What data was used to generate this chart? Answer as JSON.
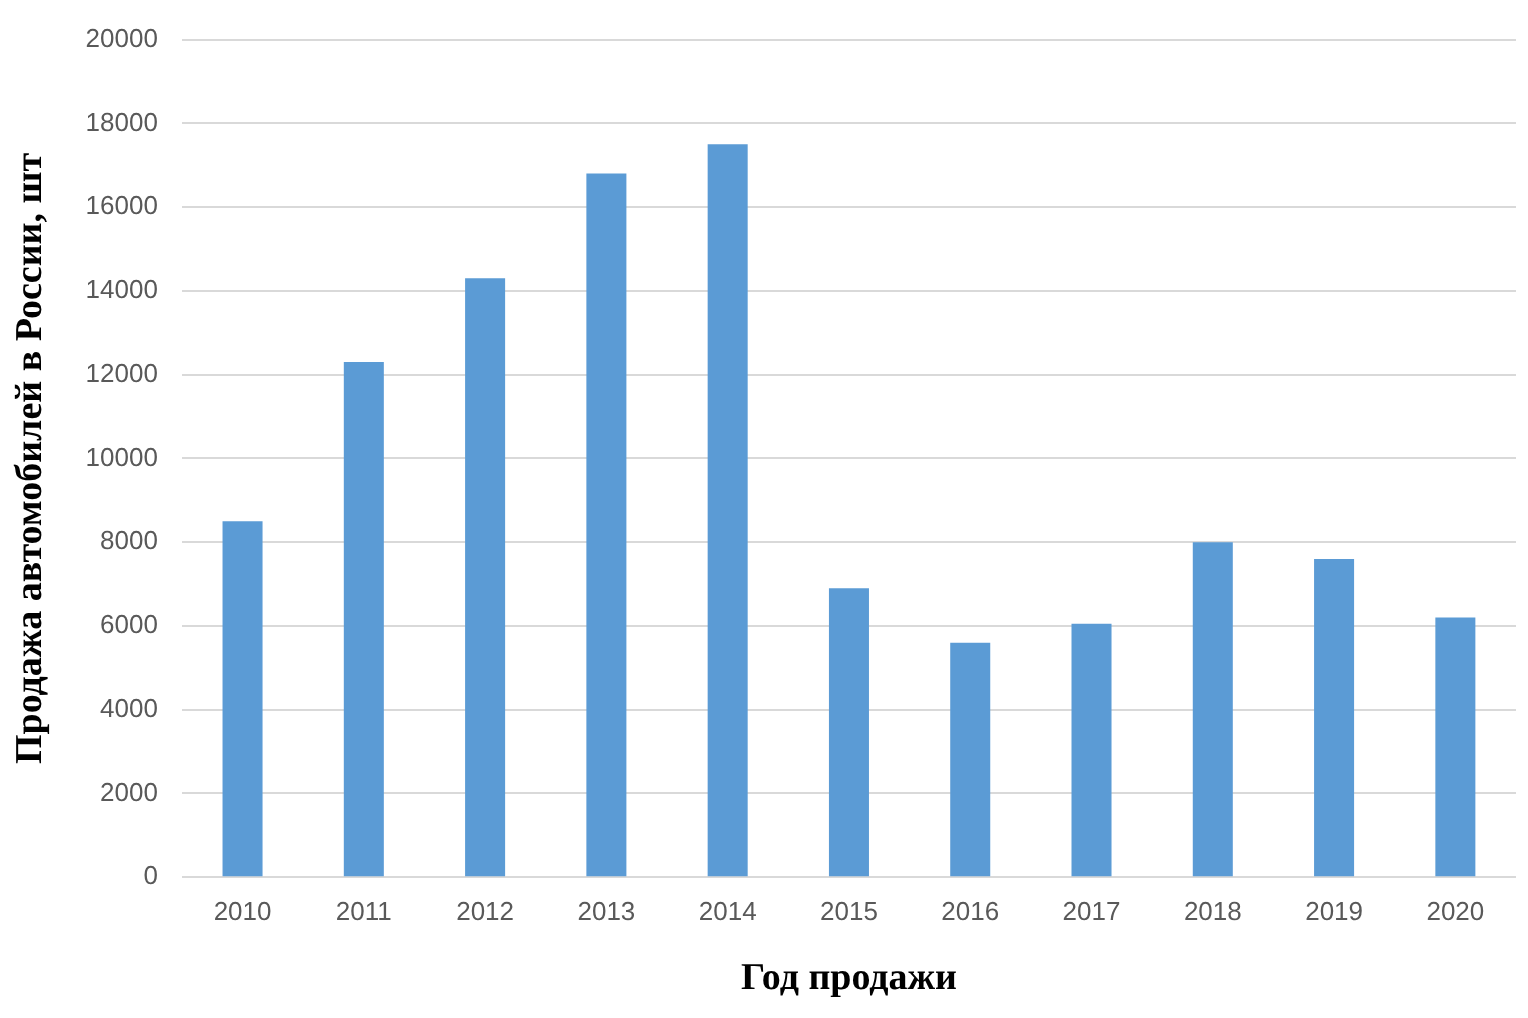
{
  "chart_data": {
    "type": "bar",
    "xlabel": "Год продажи",
    "ylabel": "Продажа автомобилей в России, шт",
    "categories": [
      "2010",
      "2011",
      "2012",
      "2013",
      "2014",
      "2015",
      "2016",
      "2017",
      "2018",
      "2019",
      "2020"
    ],
    "values": [
      8500,
      12300,
      14300,
      16800,
      17500,
      6900,
      5600,
      6050,
      8000,
      7600,
      6200
    ],
    "color": "#5b9bd5",
    "ylim": [
      0,
      20000
    ],
    "yticks": [
      0,
      2000,
      4000,
      6000,
      8000,
      10000,
      12000,
      14000,
      16000,
      18000,
      20000
    ],
    "grid": "y",
    "legend": false
  }
}
